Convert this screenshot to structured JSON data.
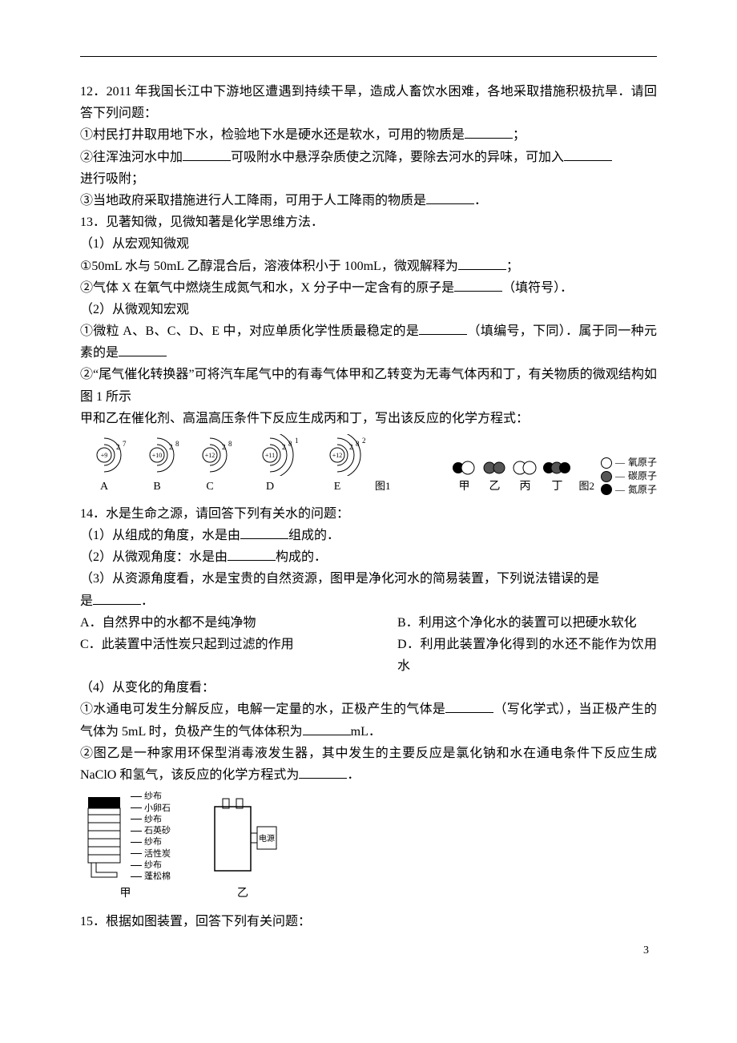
{
  "page_number": "3",
  "q12": {
    "stem": "12．2011 年我国长江中下游地区遭遇到持续干旱，造成人畜饮水困难，各地采取措施积极抗旱．请回答下列问题：",
    "i1a": "①村民打井取用地下水，检验地下水是硬水还是软水，可用的物质是",
    "i1b": "；",
    "i2a": "②往浑浊河水中加",
    "i2b": "可吸附水中悬浮杂质使之沉降，要除去河水的异味，可加入",
    "i2c": "进行吸附；",
    "i3a": "③当地政府采取措施进行人工降雨，可用于人工降雨的物质是",
    "i3b": "．"
  },
  "q13": {
    "stem": "13．见著知微，见微知著是化学思维方法．",
    "p1": "（1）从宏观知微观",
    "p1_1a": "①50mL 水与 50mL 乙醇混合后，溶液体积小于 100mL，微观解释为",
    "p1_1b": "；",
    "p1_2a": "②气体 X 在氧气中燃烧生成氮气和水，X 分子中一定含有的原子是",
    "p1_2b": "（填符号）．",
    "p2": "（2）从微观知宏观",
    "p2_1a": "①微粒 A、B、C、D、E 中，对应单质化学性质最稳定的是",
    "p2_1b": "（填编号，下同）．属于同一种元素的是",
    "p2_2": "②“尾气催化转换器”可将汽车尾气中的有毒气体甲和乙转变为无毒气体丙和丁，有关物质的微观结构如图 1 所示",
    "p2_3": "甲和乙在催化剂、高温高压条件下反应生成丙和丁，写出该反应的化学方程式：",
    "atoms": [
      {
        "nucleus": "+9",
        "shells": [
          "2",
          "7"
        ],
        "label": "A"
      },
      {
        "nucleus": "+10",
        "shells": [
          "2",
          "8"
        ],
        "label": "B"
      },
      {
        "nucleus": "+12",
        "shells": [
          "2",
          "8"
        ],
        "label": "C"
      },
      {
        "nucleus": "+11",
        "shells": [
          "2",
          "8",
          "1"
        ],
        "label": "D"
      },
      {
        "nucleus": "+12",
        "shells": [
          "2",
          "8",
          "2"
        ],
        "label": "E"
      }
    ],
    "fig1_label": "图1",
    "molecules": {
      "jia": "甲",
      "yi": "乙",
      "bing": "丙",
      "ding": "丁"
    },
    "fig2_label": "图2",
    "legend": {
      "o": "氧原子",
      "c": "碳原子",
      "n": "氮原子"
    },
    "legend_colors": {
      "o": "#ffffff",
      "c": "#555555",
      "n": "#000000"
    }
  },
  "q14": {
    "stem": "14．水是生命之源，请回答下列有关水的问题：",
    "p1a": "（1）从组成的角度，水是由",
    "p1b": "组成的．",
    "p2a": "（2）从微观角度：水是由",
    "p2b": "构成的．",
    "p3a": "（3）从资源角度看，水是宝贵的自然资源，图甲是净化河水的简易装置，下列说法错误的是",
    "p3b": "．",
    "optA": "A．自然界中的水都不是纯净物",
    "optB": "B．利用这个净化水的装置可以把硬水软化",
    "optC": "C．此装置中活性炭只起到过滤的作用",
    "optD": "D．利用此装置净化得到的水还不能作为饮用水",
    "p4": "（4）从变化的角度看：",
    "p4_1a": "①水通电可发生分解反应，电解一定量的水，正极产生的气体是",
    "p4_1b": "（写化学式），当正极产生的气体为 5mL 时，负极产生的气体体积为",
    "p4_1c": "mL．",
    "p4_2a": "②图乙是一种家用环保型消毒液发生器，其中发生的主要反应是氯化钠和水在通电条件下反应生成 NaClO 和氢气，该反应的化学方程式为",
    "p4_2b": "．",
    "layers": [
      "纱布",
      "小卵石",
      "纱布",
      "石英砂",
      "纱布",
      "活性炭",
      "纱布",
      "蓬松棉"
    ],
    "dev_jia": "甲",
    "dev_yi": "乙",
    "dev_yi_label": "电源"
  },
  "q15": {
    "stem": "15．根据如图装置，回答下列有关问题："
  }
}
